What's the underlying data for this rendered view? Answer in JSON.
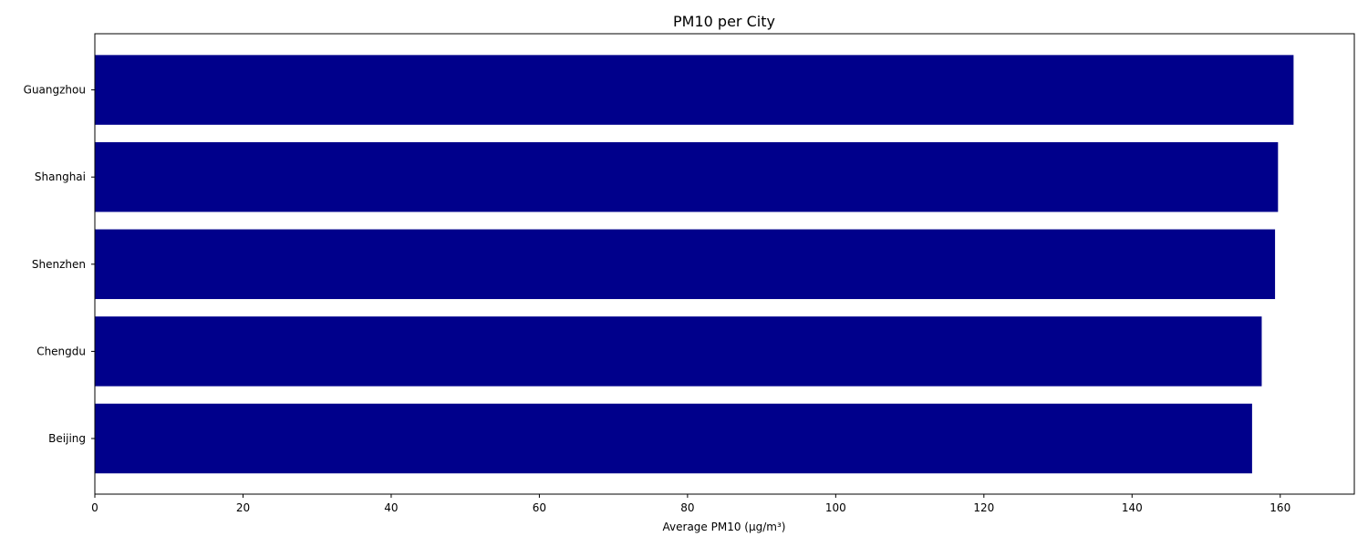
{
  "chart_data": {
    "type": "bar",
    "orientation": "horizontal",
    "title": "PM10 per City",
    "xlabel": "Average PM10 (µg/m³)",
    "ylabel": "",
    "categories": [
      "Beijing",
      "Chengdu",
      "Shenzhen",
      "Shanghai",
      "Guangzhou"
    ],
    "values": [
      156.2,
      157.5,
      159.3,
      159.7,
      161.8
    ],
    "xlim": [
      0,
      170
    ],
    "xticks": [
      0,
      20,
      40,
      60,
      80,
      100,
      120,
      140,
      160
    ],
    "grid": false,
    "legend": "none",
    "bar_color": "#00008b"
  }
}
